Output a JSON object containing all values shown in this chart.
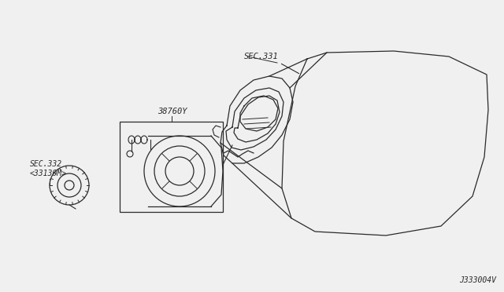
{
  "bg_color": "#f0f0f0",
  "line_color": "#2a2a2a",
  "text_color": "#2a2a2a",
  "label_sec331": "SEC.331",
  "label_38760y": "38760Y",
  "label_sec332": "SEC.332\n<33130M>",
  "label_j333004v": "J333004V"
}
